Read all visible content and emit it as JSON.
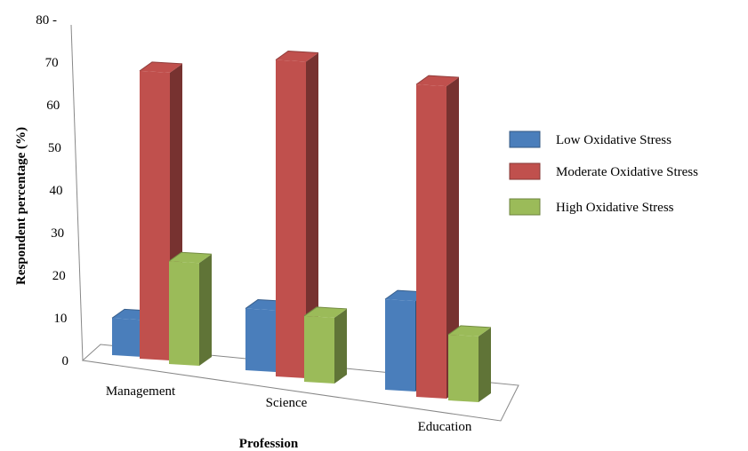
{
  "chart_data": {
    "type": "bar",
    "title": "",
    "xlabel": "Profession",
    "ylabel": "Respondent percentage (%)",
    "ylim": [
      0,
      80
    ],
    "yticks": [
      "0",
      "10",
      "20",
      "30",
      "40",
      "50",
      "60",
      "70",
      "80 -"
    ],
    "categories": [
      "Management",
      "Science",
      "Education"
    ],
    "series": [
      {
        "name": "Low Oxidative Stress",
        "values": [
          9,
          15,
          22
        ],
        "color": "#4a7ebb"
      },
      {
        "name": "Moderate Oxidative Stress",
        "values": [
          70,
          77,
          76
        ],
        "color": "#c0504d"
      },
      {
        "name": "High Oxidative Stress",
        "values": [
          25,
          16,
          16
        ],
        "color": "#9bbb59"
      }
    ],
    "legend_position": "right",
    "grid": false,
    "style": "3d-clustered-column"
  }
}
